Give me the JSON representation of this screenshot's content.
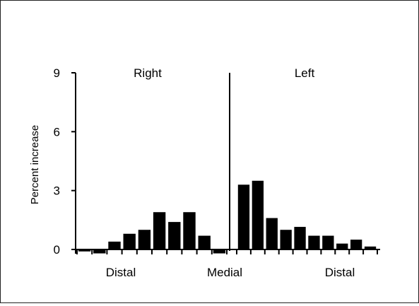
{
  "chart_data": {
    "type": "bar",
    "ylabel": "Percent increase",
    "ylim": [
      0,
      9
    ],
    "yticks": [
      0,
      3,
      6,
      9
    ],
    "grid": false,
    "panels": [
      {
        "label": "Right",
        "values": [
          -0.1,
          -0.2,
          0.4,
          0.8,
          1.0,
          1.9,
          1.4,
          1.9,
          0.7,
          -0.2
        ]
      },
      {
        "label": "Left",
        "values": [
          3.3,
          3.5,
          1.6,
          1.0,
          1.15,
          0.7,
          0.7,
          0.3,
          0.5,
          0.15
        ]
      }
    ],
    "xlabels": [
      "Distal",
      "Medial",
      "Distal"
    ],
    "bar_color": "#000000"
  }
}
